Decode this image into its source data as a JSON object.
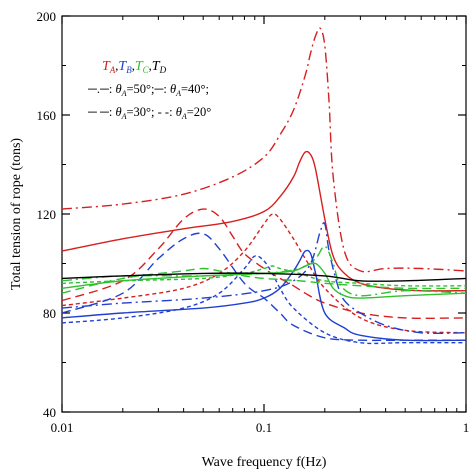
{
  "chart_data": {
    "type": "line",
    "xscale": "log",
    "xlim": [
      0.01,
      1
    ],
    "ylim": [
      40,
      200
    ],
    "xlabel": "Wave frequency f(Hz)",
    "ylabel": "Total tension of rope (tons)",
    "xticks": [
      0.01,
      0.1,
      1
    ],
    "xtick_labels": [
      "0.01",
      "0.1",
      "1"
    ],
    "yticks": [
      40,
      80,
      120,
      160,
      200
    ],
    "ytick_labels": [
      "40",
      "80",
      "120",
      "160",
      "200"
    ],
    "grid": false,
    "legend": {
      "placement": "top-left",
      "tension_labels": [
        {
          "main": "T",
          "sub": "A",
          "color": "#d62020"
        },
        {
          "main": "T",
          "sub": "B",
          "color": "#2040d0"
        },
        {
          "main": "T",
          "sub": "C",
          "color": "#30c030"
        },
        {
          "main": "T",
          "sub": "D",
          "color": "#000000"
        }
      ],
      "line1_a": "─.─: ",
      "line1_b": "=50°;",
      "line1_c": "─: ",
      "line1_d": "=40°;",
      "line2_a": "─ ─: ",
      "line2_b": "=30°; ",
      "line2_c": "- -: ",
      "line2_d": "=20°",
      "theta": "θ",
      "theta_sub": "A"
    },
    "series": [
      {
        "color": "#d62020",
        "dash": "dashdot",
        "x": [
          0.01,
          0.02,
          0.04,
          0.07,
          0.1,
          0.12,
          0.14,
          0.16,
          0.17,
          0.18,
          0.19,
          0.2,
          0.21,
          0.22,
          0.25,
          0.3,
          0.4,
          0.6,
          1
        ],
        "y": [
          122,
          124,
          128,
          135,
          143,
          152,
          162,
          176,
          185,
          192,
          195,
          188,
          165,
          135,
          105,
          97,
          98,
          98,
          97
        ]
      },
      {
        "color": "#d62020",
        "dash": "solid",
        "x": [
          0.01,
          0.02,
          0.04,
          0.07,
          0.1,
          0.12,
          0.14,
          0.15,
          0.16,
          0.17,
          0.18,
          0.2,
          0.22,
          0.25,
          0.3,
          0.4,
          0.6,
          1
        ],
        "y": [
          105,
          110,
          114,
          117,
          121,
          127,
          135,
          141,
          145,
          144,
          138,
          118,
          103,
          96,
          92,
          90,
          89,
          89
        ]
      },
      {
        "color": "#d62020",
        "dash": "dashed",
        "x": [
          0.01,
          0.02,
          0.03,
          0.04,
          0.05,
          0.06,
          0.07,
          0.08,
          0.1,
          0.12,
          0.14,
          0.16,
          0.2,
          0.3,
          0.5,
          1
        ],
        "y": [
          85,
          93,
          106,
          118,
          122,
          119,
          111,
          104,
          98,
          94,
          91,
          88,
          84,
          80,
          78,
          78
        ]
      },
      {
        "color": "#d62020",
        "dash": "dotted",
        "x": [
          0.01,
          0.02,
          0.04,
          0.06,
          0.08,
          0.1,
          0.11,
          0.12,
          0.14,
          0.16,
          0.2,
          0.3,
          0.5,
          1
        ],
        "y": [
          83,
          86,
          90,
          96,
          105,
          116,
          120,
          118,
          110,
          102,
          90,
          78,
          73,
          72
        ]
      },
      {
        "color": "#2040d0",
        "dash": "dashdot",
        "x": [
          0.01,
          0.02,
          0.05,
          0.1,
          0.14,
          0.17,
          0.19,
          0.2,
          0.21,
          0.23,
          0.25,
          0.3,
          0.4,
          0.6,
          1
        ],
        "y": [
          82,
          84,
          86,
          89,
          93,
          100,
          113,
          116,
          105,
          92,
          85,
          80,
          75,
          72,
          72
        ]
      },
      {
        "color": "#2040d0",
        "dash": "solid",
        "x": [
          0.01,
          0.02,
          0.05,
          0.08,
          0.1,
          0.12,
          0.14,
          0.15,
          0.16,
          0.17,
          0.18,
          0.2,
          0.25,
          0.3,
          0.5,
          1
        ],
        "y": [
          78,
          80,
          82,
          84,
          86,
          90,
          97,
          101,
          105,
          104,
          96,
          80,
          74,
          71,
          69,
          69
        ]
      },
      {
        "color": "#2040d0",
        "dash": "dashed",
        "x": [
          0.01,
          0.02,
          0.03,
          0.04,
          0.05,
          0.06,
          0.08,
          0.1,
          0.12,
          0.14,
          0.2,
          0.3,
          0.5,
          1
        ],
        "y": [
          80,
          88,
          102,
          110,
          112,
          106,
          92,
          86,
          80,
          75,
          70,
          69,
          69,
          69
        ]
      },
      {
        "color": "#2040d0",
        "dash": "dotted",
        "x": [
          0.01,
          0.02,
          0.04,
          0.06,
          0.08,
          0.09,
          0.1,
          0.11,
          0.12,
          0.14,
          0.2,
          0.3,
          0.5,
          1
        ],
        "y": [
          76,
          78,
          82,
          88,
          98,
          103,
          101,
          96,
          90,
          82,
          72,
          68,
          68,
          68
        ]
      },
      {
        "color": "#30c030",
        "dash": "dashdot",
        "x": [
          0.01,
          0.02,
          0.05,
          0.1,
          0.15,
          0.18,
          0.2,
          0.22,
          0.24,
          0.3,
          0.5,
          1
        ],
        "y": [
          93,
          95,
          95,
          96,
          98,
          102,
          107,
          100,
          91,
          87,
          89,
          88
        ]
      },
      {
        "color": "#30c030",
        "dash": "solid",
        "x": [
          0.01,
          0.02,
          0.05,
          0.1,
          0.14,
          0.16,
          0.18,
          0.2,
          0.22,
          0.25,
          0.3,
          0.5,
          1
        ],
        "y": [
          90,
          93,
          95,
          96,
          97,
          99,
          100,
          96,
          90,
          87,
          86,
          87,
          88
        ]
      },
      {
        "color": "#30c030",
        "dash": "dashed",
        "x": [
          0.01,
          0.02,
          0.04,
          0.05,
          0.06,
          0.08,
          0.1,
          0.15,
          0.2,
          0.3,
          0.5,
          1
        ],
        "y": [
          88,
          94,
          97,
          98,
          97,
          95,
          94,
          93,
          92,
          91,
          90,
          90
        ]
      },
      {
        "color": "#30c030",
        "dash": "dotted",
        "x": [
          0.01,
          0.02,
          0.05,
          0.08,
          0.1,
          0.11,
          0.12,
          0.15,
          0.2,
          0.3,
          0.5,
          1
        ],
        "y": [
          92,
          93,
          94,
          96,
          98,
          99,
          98,
          96,
          93,
          92,
          91,
          91
        ]
      },
      {
        "color": "#000000",
        "dash": "solid",
        "x": [
          0.01,
          0.02,
          0.05,
          0.1,
          0.2,
          0.3,
          0.5,
          1
        ],
        "y": [
          94,
          95,
          96,
          96,
          95,
          93,
          93,
          94
        ]
      }
    ]
  }
}
